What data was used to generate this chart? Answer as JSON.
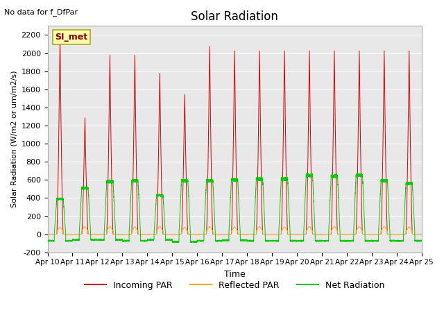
{
  "title": "Solar Radiation",
  "note": "No data for f_DfPar",
  "ylabel": "Solar Radiation (W/m2 or um/m2/s)",
  "xlabel": "Time",
  "ylim": [
    -200,
    2300
  ],
  "yticks": [
    -200,
    0,
    200,
    400,
    600,
    800,
    1000,
    1200,
    1400,
    1600,
    1800,
    2000,
    2200
  ],
  "xlim": [
    0,
    15
  ],
  "xtick_labels": [
    "Apr 10",
    "Apr 11",
    "Apr 12",
    "Apr 13",
    "Apr 14",
    "Apr 15",
    "Apr 16",
    "Apr 17",
    "Apr 18",
    "Apr 19",
    "Apr 20",
    "Apr 21",
    "Apr 22",
    "Apr 23",
    "Apr 24",
    "Apr 25"
  ],
  "legend_labels": [
    "Incoming PAR",
    "Reflected PAR",
    "Net Radiation"
  ],
  "legend_colors": [
    "#dd0000",
    "#ffaa00",
    "#00cc00"
  ],
  "bg_color": "#e8e8e8",
  "box_label": "SI_met",
  "box_color": "#ffffaa",
  "box_border": "#aaa820",
  "incoming_peaks": [
    2200,
    1300,
    2000,
    2000,
    1800,
    1560,
    2100,
    2050,
    2050,
    2050,
    2050,
    2050,
    2050,
    2050,
    2050
  ],
  "net_peaks": [
    390,
    510,
    580,
    590,
    430,
    590,
    590,
    600,
    610,
    610,
    650,
    640,
    650,
    590,
    560
  ],
  "reflected_peaks": [
    80,
    90,
    90,
    85,
    90,
    80,
    90,
    85,
    90,
    85,
    90,
    90,
    90,
    90,
    85
  ],
  "neg_net": [
    -80,
    -70,
    -70,
    -80,
    -70,
    -90,
    -80,
    -75,
    -80,
    -80,
    -80,
    -80,
    -80,
    -80,
    -80
  ]
}
